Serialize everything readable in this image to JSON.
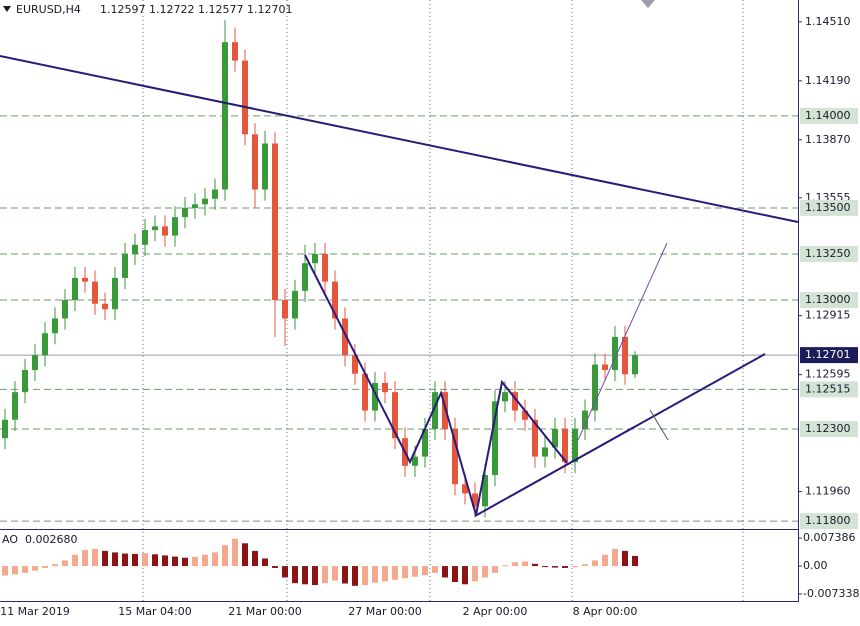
{
  "chart_data": {
    "type": "candlestick",
    "symbol": "EURUSD,H4",
    "categories": [
      null,
      null,
      null,
      "11 Mar 2019",
      null,
      null,
      null,
      null,
      null,
      null,
      null,
      null,
      null,
      null,
      null,
      "15 Mar 04:00",
      null,
      null,
      null,
      null,
      null,
      null,
      null,
      null,
      null,
      null,
      "21 Mar 00:00",
      null,
      null,
      null,
      null,
      null,
      null,
      null,
      null,
      null,
      null,
      null,
      "27 Mar 00:00",
      null,
      null,
      null,
      null,
      null,
      null,
      null,
      null,
      null,
      null,
      "2 Apr 00:00",
      null,
      null,
      null,
      null,
      null,
      null,
      null,
      null,
      null,
      null,
      "8 Apr 00:00",
      null,
      null,
      null
    ],
    "open": [
      1.1225,
      1.1235,
      1.125,
      1.1262,
      1.127,
      1.1282,
      1.129,
      1.13,
      1.1312,
      1.131,
      1.1298,
      1.1295,
      1.1312,
      1.1325,
      1.133,
      1.1338,
      1.134,
      1.1335,
      1.1345,
      1.135,
      1.1352,
      1.1355,
      1.136,
      1.144,
      1.143,
      1.139,
      1.136,
      1.1385,
      1.13,
      1.129,
      1.1305,
      1.132,
      1.1325,
      1.131,
      1.129,
      1.127,
      1.126,
      1.124,
      1.1255,
      1.125,
      1.1225,
      1.121,
      1.1215,
      1.123,
      1.125,
      1.123,
      1.12,
      1.1195,
      1.1188,
      1.1205,
      1.1245,
      1.125,
      1.124,
      1.1235,
      1.1215,
      1.122,
      1.123,
      1.1212,
      1.123,
      1.124,
      1.1265,
      1.1262,
      1.128,
      1.12597
    ],
    "high": [
      1.1241,
      1.1256,
      1.1268,
      1.1276,
      1.1288,
      1.1296,
      1.1306,
      1.1318,
      1.1318,
      1.1316,
      1.1304,
      1.1318,
      1.1331,
      1.1336,
      1.1344,
      1.1346,
      1.1346,
      1.1351,
      1.1356,
      1.1358,
      1.1361,
      1.1366,
      1.1452,
      1.1448,
      1.1436,
      1.1396,
      1.1392,
      1.1391,
      1.1306,
      1.1311,
      1.133,
      1.1331,
      1.1331,
      1.1316,
      1.1296,
      1.1276,
      1.1266,
      1.1261,
      1.1261,
      1.1256,
      1.1231,
      1.1221,
      1.1236,
      1.1256,
      1.1256,
      1.1236,
      1.1206,
      1.1201,
      1.1211,
      1.1251,
      1.1256,
      1.1256,
      1.1246,
      1.1241,
      1.1226,
      1.1236,
      1.1236,
      1.1236,
      1.1246,
      1.1271,
      1.1271,
      1.1286,
      1.1286,
      1.12722
    ],
    "low": [
      1.1219,
      1.1229,
      1.1244,
      1.1256,
      1.1264,
      1.1276,
      1.1284,
      1.1294,
      1.1304,
      1.1292,
      1.1289,
      1.1289,
      1.1306,
      1.1319,
      1.1324,
      1.1332,
      1.1329,
      1.1329,
      1.1339,
      1.1344,
      1.1346,
      1.1349,
      1.1354,
      1.1424,
      1.1384,
      1.135,
      1.1354,
      1.128,
      1.1275,
      1.1284,
      1.1299,
      1.1314,
      1.1304,
      1.1284,
      1.1264,
      1.1254,
      1.1234,
      1.1234,
      1.1244,
      1.1219,
      1.1204,
      1.1204,
      1.1209,
      1.1224,
      1.1224,
      1.1194,
      1.1189,
      1.1182,
      1.1182,
      1.1199,
      1.1239,
      1.1234,
      1.1229,
      1.1209,
      1.1209,
      1.1214,
      1.1206,
      1.1206,
      1.1224,
      1.1234,
      1.1256,
      1.1256,
      1.1254,
      1.12577
    ],
    "close": [
      1.1235,
      1.125,
      1.1262,
      1.127,
      1.1282,
      1.129,
      1.13,
      1.1312,
      1.131,
      1.1298,
      1.1295,
      1.1312,
      1.1325,
      1.133,
      1.1338,
      1.134,
      1.1335,
      1.1345,
      1.135,
      1.1352,
      1.1355,
      1.136,
      1.144,
      1.143,
      1.139,
      1.136,
      1.1385,
      1.13,
      1.129,
      1.1305,
      1.132,
      1.1325,
      1.131,
      1.129,
      1.127,
      1.126,
      1.124,
      1.1255,
      1.125,
      1.1225,
      1.121,
      1.1215,
      1.123,
      1.125,
      1.123,
      1.12,
      1.1195,
      1.1188,
      1.1205,
      1.1245,
      1.125,
      1.124,
      1.1235,
      1.1215,
      1.122,
      1.123,
      1.1212,
      1.123,
      1.124,
      1.1265,
      1.1262,
      1.128,
      1.12597,
      1.12701
    ],
    "bull_color": "#3a9a3a",
    "bear_color": "#e4573c",
    "ylim": [
      1.11757,
      1.14629
    ],
    "yticks": [
      {
        "value": 1.1451,
        "label": "1.14510"
      },
      {
        "value": 1.1419,
        "label": "1.14190"
      },
      {
        "value": 1.1387,
        "label": "1.13870"
      },
      1.13555,
      1.12915,
      1.12595,
      {
        "value": 1.1196,
        "label": "1.11960"
      }
    ],
    "levels": [
      {
        "value": 1.14,
        "label": "1.14000"
      },
      {
        "value": 1.135,
        "label": "1.13500"
      },
      {
        "value": 1.1325,
        "label": "1.13250"
      },
      {
        "value": 1.13,
        "label": "1.13000"
      },
      1.12515,
      {
        "value": 1.123,
        "label": "1.12300"
      },
      {
        "value": 1.118,
        "label": "1.11800"
      }
    ],
    "level_color": "#6f9a6f",
    "ao": {
      "name": "AO",
      "last_label": "0.002680",
      "values": [
        -0.0025,
        -0.0022,
        -0.0018,
        -0.0012,
        -0.0005,
        0.0005,
        0.0015,
        0.003,
        0.0042,
        0.0045,
        0.004,
        0.0036,
        0.0033,
        0.0032,
        0.0034,
        0.0031,
        0.0028,
        0.0025,
        0.0022,
        0.0024,
        0.003,
        0.0036,
        0.0055,
        0.0072,
        0.006,
        0.004,
        0.002,
        -0.0005,
        -0.003,
        -0.0045,
        -0.0048,
        -0.005,
        -0.0045,
        -0.0038,
        -0.0046,
        -0.0052,
        -0.005,
        -0.0044,
        -0.004,
        -0.0036,
        -0.0032,
        -0.0028,
        -0.0024,
        -0.0018,
        -0.003,
        -0.0042,
        -0.0048,
        -0.004,
        -0.003,
        -0.0018,
        0.0002,
        0.001,
        0.0012,
        0.0006,
        -0.0002,
        -0.0004,
        -0.0005,
        -0.0003,
        0.0005,
        0.0015,
        0.003,
        0.0045,
        0.004,
        0.00268
      ],
      "up_color": "#f4a98c",
      "down_color": "#8b1414",
      "ylim": [
        -0.0092,
        0.0095
      ],
      "yticks": [
        0.007386,
        {
          "value": 0,
          "label": "0.00"
        },
        -0.007338
      ]
    }
  }
}
